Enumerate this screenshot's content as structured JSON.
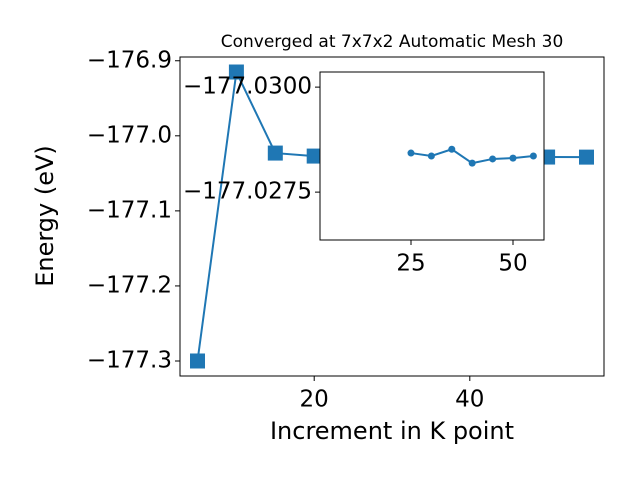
{
  "chart_data": [
    {
      "type": "line",
      "title": "Converged at 7x7x2 Automatic Mesh 30",
      "xlabel": "Increment in K point",
      "ylabel": "Energy (eV)",
      "x": [
        5,
        10,
        15,
        20,
        25,
        30,
        35,
        40,
        45,
        50,
        55
      ],
      "series": [
        {
          "name": "Energy",
          "color": "#1f77b4",
          "marker": "square",
          "values": [
            -177.3,
            -176.915,
            -177.023,
            -177.027,
            -177.0284,
            -177.0284,
            -177.0285,
            -177.0282,
            -177.0283,
            -177.0283,
            -177.0284
          ]
        }
      ],
      "xlim": [
        2.75,
        57.25
      ],
      "ylim": [
        -177.32,
        -176.895
      ],
      "xticks": [
        20,
        40
      ],
      "yticks": [
        {
          "value": -176.9,
          "label": "−176.9"
        },
        {
          "value": -177.0,
          "label": "−177.0"
        },
        {
          "value": -177.1,
          "label": "−177.1"
        },
        {
          "value": -177.2,
          "label": "−177.2"
        },
        {
          "value": -177.3,
          "label": "−177.3"
        }
      ]
    },
    {
      "type": "line",
      "x": [
        25,
        30,
        35,
        40,
        45,
        50,
        55
      ],
      "series": [
        {
          "name": "Energy",
          "color": "#1f77b4",
          "marker": "circle",
          "values": [
            -177.02843,
            -177.02836,
            -177.02852,
            -177.02819,
            -177.02829,
            -177.02831,
            -177.02836
          ]
        }
      ],
      "xlim": [
        2.7,
        57.6
      ],
      "ylim": [
        -177.02636,
        -177.03036
      ],
      "xticks": [
        25,
        50
      ],
      "yticks": [
        {
          "value": -177.03,
          "label": "−177.0300"
        },
        {
          "value": -177.0275,
          "label": "−177.0275"
        }
      ]
    }
  ]
}
